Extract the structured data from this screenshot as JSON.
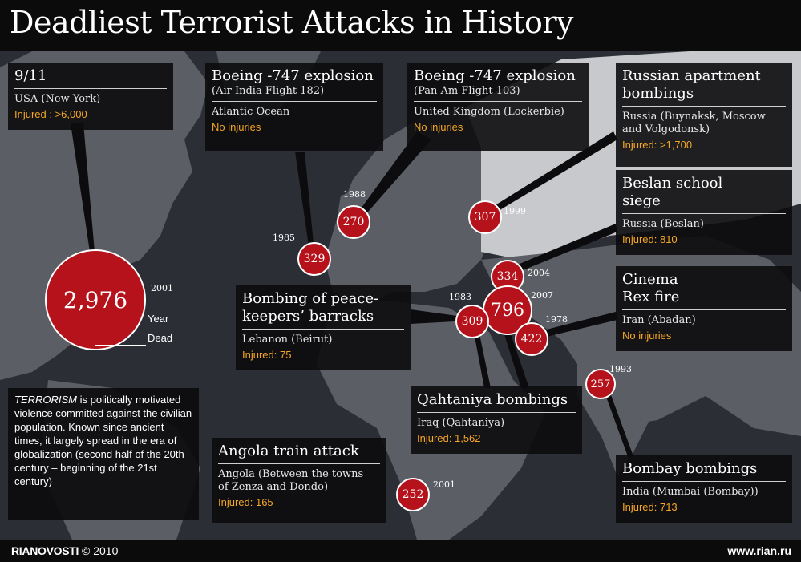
{
  "title": "Deadliest Terrorist Attacks in History",
  "footer": {
    "brand": "RIANOVOSTI",
    "copyright": "© 2010",
    "url": "www.rian.ru"
  },
  "colors": {
    "marker": "#b5121b",
    "injured_text": "#f5a623",
    "land": "#5b5f65",
    "land_light": "#c7c9cc",
    "sea": "#2b2f35"
  },
  "legend": {
    "value": "2,976",
    "year_value": "2001",
    "year_label": "Year",
    "dead_label": "Dead"
  },
  "definition": {
    "term": "TERRORISM",
    "text": " is politically motivated violence committed against the civilian population. Known since ancient times, it largely spread in the era of globalization (second half of the 20th century – beginning of the 21st century)"
  },
  "attacks": [
    {
      "id": "911",
      "title": "9/11",
      "location": "USA (New York)",
      "injured": "Injured : >6,000",
      "dead": "2,976",
      "year": "2001"
    },
    {
      "id": "ai182",
      "title": "Boeing -747 explosion",
      "subtitle": "(Air India Flight 182)",
      "location": "Atlantic Ocean",
      "injured": "No injuries",
      "dead": "329",
      "year": "1985"
    },
    {
      "id": "pa103",
      "title": "Boeing -747 explosion",
      "subtitle": "(Pan Am Flight 103)",
      "location": "United Kingdom (Lockerbie)",
      "injured": "No injuries",
      "dead": "270",
      "year": "1988"
    },
    {
      "id": "apt",
      "title": "Russian apartment\nbombings",
      "location": "Russia (Buynaksk, Moscow\nand Volgodonsk)",
      "injured": "Injured: >1,700",
      "dead": "307",
      "year": "1999"
    },
    {
      "id": "beslan",
      "title": "Beslan school\nsiege",
      "location": "Russia (Beslan)",
      "injured": "Injured: 810",
      "dead": "334",
      "year": "2004"
    },
    {
      "id": "rex",
      "title": "Cinema\nRex fire",
      "location": "Iran (Abadan)",
      "injured": "No injuries",
      "dead": "422",
      "year": "1978"
    },
    {
      "id": "beirut",
      "title": "Bombing of peace-\nkeepers’ barracks",
      "location": "Lebanon (Beirut)",
      "injured": "Injured: 75",
      "dead": "309",
      "year": "1983"
    },
    {
      "id": "qaht",
      "title": "Qahtaniya bombings",
      "location": "Iraq (Qahtaniya)",
      "injured": "Injured: 1,562",
      "dead": "796",
      "year": "2007"
    },
    {
      "id": "angola",
      "title": "Angola train attack",
      "location": "Angola (Between the towns\nof Zenza and Dondo)",
      "injured": "Injured: 165",
      "dead": "252",
      "year": "2001"
    },
    {
      "id": "bombay",
      "title": "Bombay bombings",
      "location": "India (Mumbai (Bombay))",
      "injured": "Injured: 713",
      "dead": "257",
      "year": "1993"
    }
  ]
}
